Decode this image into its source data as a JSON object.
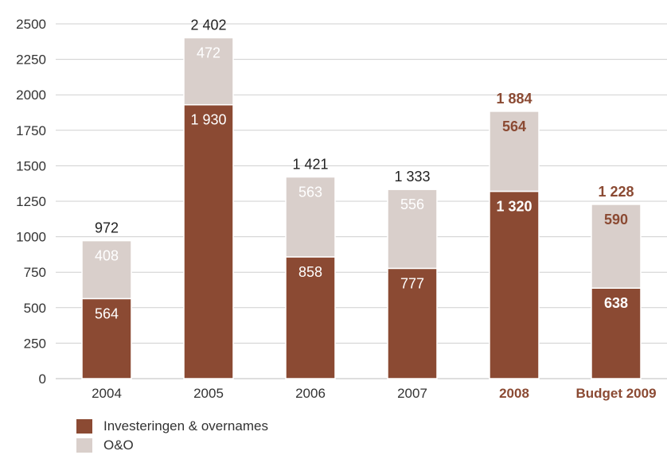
{
  "chart_data": {
    "type": "bar",
    "stacked": true,
    "categories": [
      "2004",
      "2005",
      "2006",
      "2007",
      "2008",
      "Budget 2009"
    ],
    "highlight_categories": [
      "2008",
      "Budget 2009"
    ],
    "series": [
      {
        "name": "Investeringen & overnames",
        "color": "#8B4A33",
        "values": [
          564,
          1930,
          858,
          777,
          1320,
          638
        ],
        "value_labels": [
          "564",
          "1 930",
          "858",
          "777",
          "1 320",
          "638"
        ]
      },
      {
        "name": "O&O",
        "color": "#D9CFCB",
        "values": [
          408,
          472,
          563,
          556,
          564,
          590
        ],
        "value_labels": [
          "408",
          "472",
          "563",
          "556",
          "564",
          "590"
        ]
      }
    ],
    "totals": [
      972,
      2402,
      1421,
      1333,
      1884,
      1228
    ],
    "total_labels": [
      "972",
      "2 402",
      "1 421",
      "1 333",
      "1 884",
      "1 228"
    ],
    "yticks": [
      "0",
      "250",
      "500",
      "750",
      "1000",
      "1250",
      "1500",
      "1750",
      "2000",
      "2250",
      "2500"
    ],
    "ylim": [
      0,
      2500
    ],
    "grid": true,
    "legend_position": "bottom-left",
    "highlight_color": "#8B4A33",
    "text_color": "#333333"
  }
}
